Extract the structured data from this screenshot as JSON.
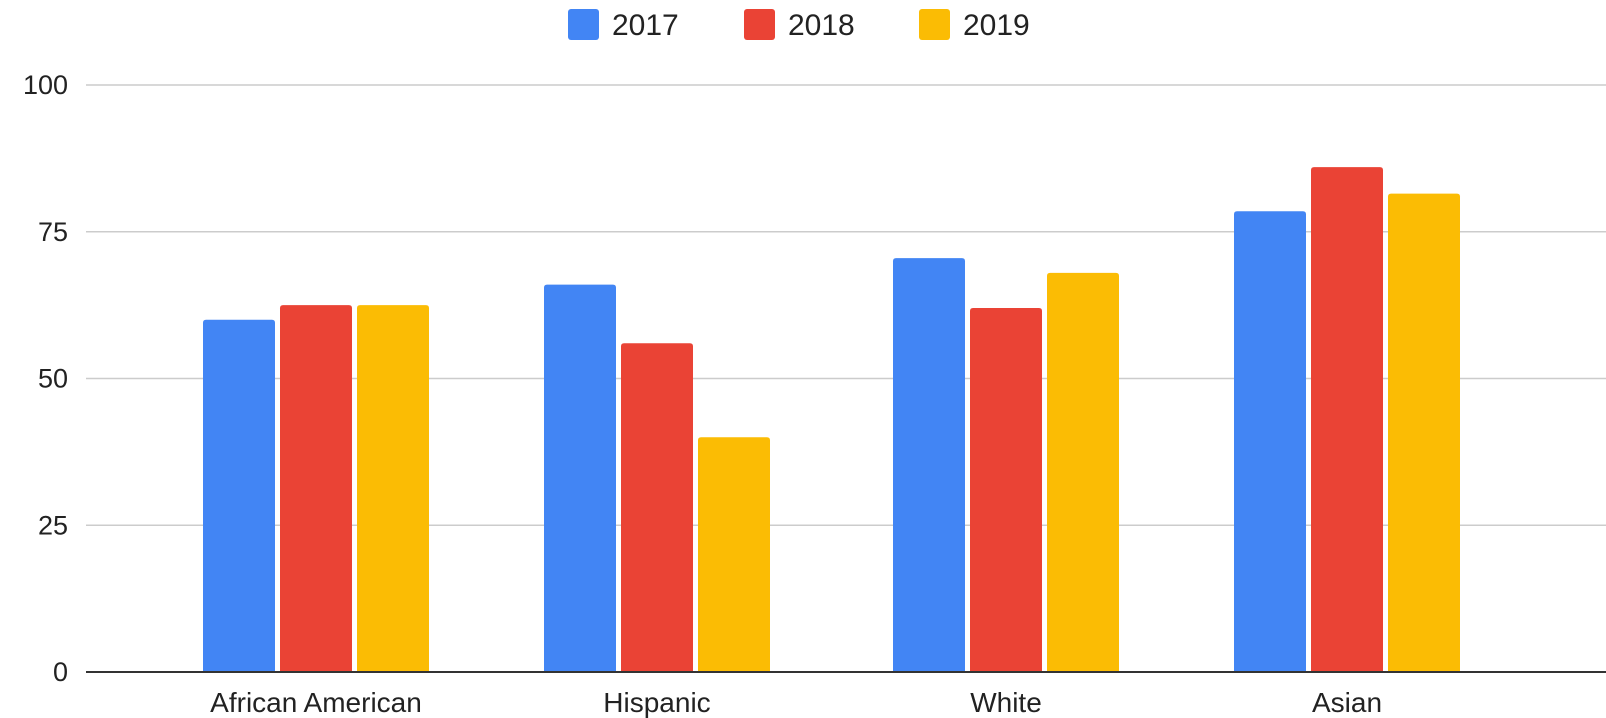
{
  "chart_data": {
    "type": "bar",
    "categories": [
      "African American",
      "Hispanic",
      "White",
      "Asian"
    ],
    "series": [
      {
        "name": "2017",
        "color": "#4285F4",
        "values": [
          60,
          66,
          70.5,
          78.5
        ]
      },
      {
        "name": "2018",
        "color": "#EA4335",
        "values": [
          62.5,
          56,
          62,
          86
        ]
      },
      {
        "name": "2019",
        "color": "#FBBC04",
        "values": [
          62.5,
          40,
          68,
          81.5
        ]
      }
    ],
    "title": "",
    "xlabel": "",
    "ylabel": "",
    "ylim": [
      0,
      100
    ],
    "yticks": [
      "0",
      "25",
      "50",
      "75",
      "100"
    ],
    "grid": true,
    "legend_position": "top-center"
  }
}
